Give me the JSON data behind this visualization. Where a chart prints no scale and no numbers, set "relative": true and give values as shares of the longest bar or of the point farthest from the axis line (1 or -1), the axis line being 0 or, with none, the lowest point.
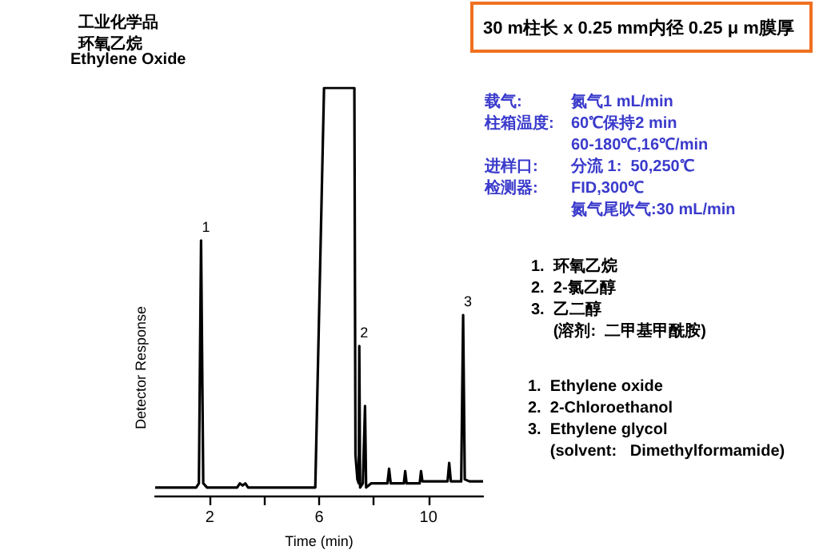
{
  "chart_data": {
    "type": "line",
    "title": "工业化学品",
    "subtitle": "环氧乙烷",
    "xlabel": "Time (min)",
    "ylabel": "Detector Response",
    "relative": true,
    "xlim": [
      0,
      12
    ],
    "xticks": [
      {
        "value": 2,
        "label": "2"
      },
      {
        "value": 4,
        "label": null
      },
      {
        "value": 6,
        "label": "6"
      },
      {
        "value": 8,
        "label": null
      },
      {
        "value": 10,
        "label": "10"
      }
    ],
    "series": [
      {
        "color": "#000000",
        "x": [
          0,
          1.5,
          1.6,
          1.68,
          1.76,
          1.9,
          3.0,
          3.1,
          3.2,
          3.3,
          3.4,
          5.86,
          6.18,
          7.29,
          7.33,
          7.4,
          7.45,
          7.47,
          7.5,
          7.6,
          7.68,
          7.72,
          7.9,
          8.5,
          8.56,
          8.62,
          9.1,
          9.15,
          9.2,
          9.68,
          9.73,
          9.78,
          10.7,
          10.76,
          10.82,
          11.2,
          11.27,
          11.33,
          11.5,
          12
        ],
        "values": [
          0.02,
          0.02,
          0.03,
          0.626,
          0.03,
          0.02,
          0.02,
          0.03,
          0.025,
          0.03,
          0.02,
          0.02,
          1,
          1,
          0.1,
          0.04,
          0.03,
          0.367,
          0.02,
          0.03,
          0.22,
          0.02,
          0.03,
          0.03,
          0.066,
          0.03,
          0.03,
          0.06,
          0.03,
          0.03,
          0.06,
          0.035,
          0.035,
          0.08,
          0.035,
          0.035,
          0.443,
          0.04,
          0.035,
          0.035
        ]
      }
    ],
    "annotations": [
      "Ethylene Oxide",
      "30 m柱长 x 0.25 mm内径 0.25 μ m膜厚",
      "载气:\n柱箱温度:\n\n进样口:\n检测器:",
      "氮气1 mL/min\n60℃保持2 min\n60-180℃,16℃/min\n分流 1:  50,250℃\nFID,300℃\n氮气尾吹气:30 mL/min",
      "1.  环氧乙烷\n2.  2-氯乙醇\n3.  乙二醇\n     (溶剂:  二甲基甲酰胺)",
      "1.  Ethylene oxide\n2.  2-Chloroethanol\n3.  Ethylene glycol\n     (solvent:   Dimethylformamide)",
      {
        "text": "1",
        "x": 1.68,
        "y": 0.626
      },
      {
        "text": "2",
        "x": 7.47,
        "y": 0.367
      },
      {
        "text": "3",
        "x": 11.27,
        "y": 0.443
      }
    ]
  }
}
